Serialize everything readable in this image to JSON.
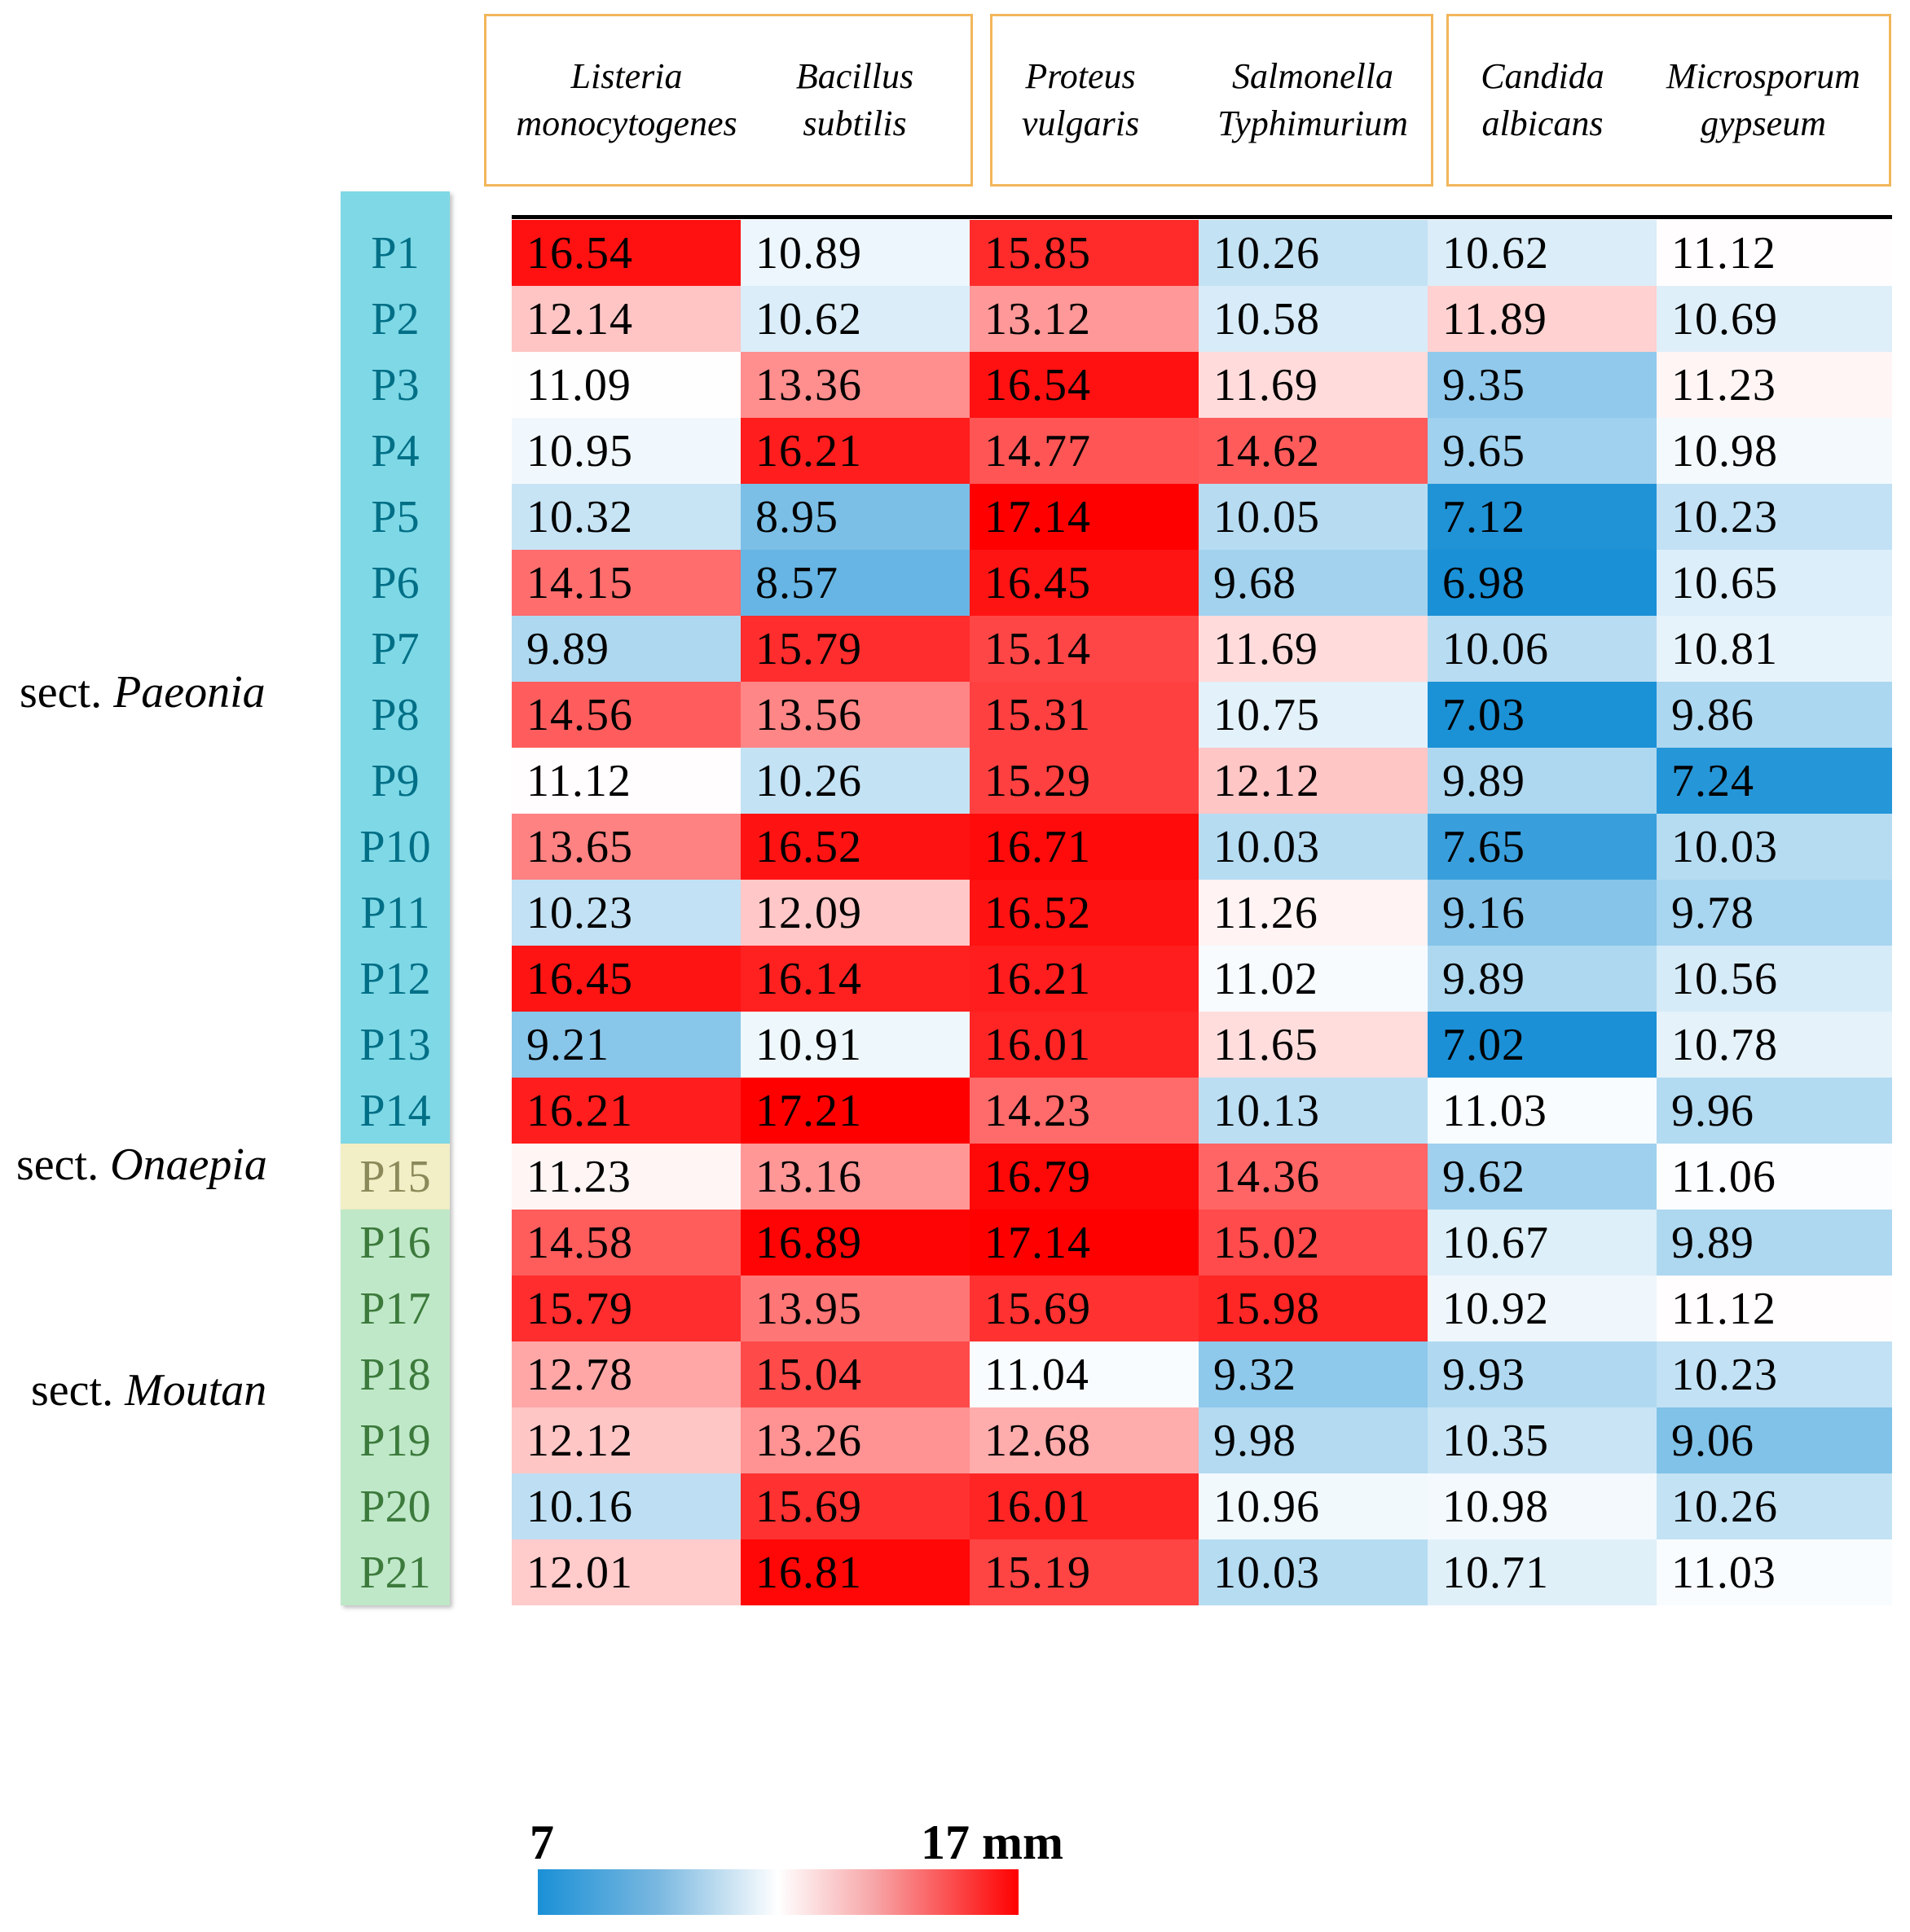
{
  "chart_data": {
    "type": "heatmap",
    "columns": [
      {
        "line1": "Listeria",
        "line2": "monocytogenes"
      },
      {
        "line1": "Bacillus",
        "line2": "subtilis"
      },
      {
        "line1": "Proteus",
        "line2": "vulgaris"
      },
      {
        "line1": "Salmonella",
        "line2": "Typhimurium"
      },
      {
        "line1": "Candida",
        "line2": "albicans"
      },
      {
        "line1": "Microsporum",
        "line2": "gypseum"
      }
    ],
    "column_groups": [
      [
        0,
        1
      ],
      [
        2,
        3
      ],
      [
        4,
        5
      ]
    ],
    "rows": [
      "P1",
      "P2",
      "P3",
      "P4",
      "P5",
      "P6",
      "P7",
      "P8",
      "P9",
      "P10",
      "P11",
      "P12",
      "P13",
      "P14",
      "P15",
      "P16",
      "P17",
      "P18",
      "P19",
      "P20",
      "P21"
    ],
    "values": [
      [
        16.54,
        10.89,
        15.85,
        10.26,
        10.62,
        11.12
      ],
      [
        12.14,
        10.62,
        13.12,
        10.58,
        11.89,
        10.69
      ],
      [
        11.09,
        13.36,
        16.54,
        11.69,
        9.35,
        11.23
      ],
      [
        10.95,
        16.21,
        14.77,
        14.62,
        9.65,
        10.98
      ],
      [
        10.32,
        8.95,
        17.14,
        10.05,
        7.12,
        10.23
      ],
      [
        14.15,
        8.57,
        16.45,
        9.68,
        6.98,
        10.65
      ],
      [
        9.89,
        15.79,
        15.14,
        11.69,
        10.06,
        10.81
      ],
      [
        14.56,
        13.56,
        15.31,
        10.75,
        7.03,
        9.86
      ],
      [
        11.12,
        10.26,
        15.29,
        12.12,
        9.89,
        7.24
      ],
      [
        13.65,
        16.52,
        16.71,
        10.03,
        7.65,
        10.03
      ],
      [
        10.23,
        12.09,
        16.52,
        11.26,
        9.16,
        9.78
      ],
      [
        16.45,
        16.14,
        16.21,
        11.02,
        9.89,
        10.56
      ],
      [
        9.21,
        10.91,
        16.01,
        11.65,
        7.02,
        10.78
      ],
      [
        16.21,
        17.21,
        14.23,
        10.13,
        11.03,
        9.96
      ],
      [
        11.23,
        13.16,
        16.79,
        14.36,
        9.62,
        11.06
      ],
      [
        14.58,
        16.89,
        17.14,
        15.02,
        10.67,
        9.89
      ],
      [
        15.79,
        13.95,
        15.69,
        15.98,
        10.92,
        11.12
      ],
      [
        12.78,
        15.04,
        11.04,
        9.32,
        9.93,
        10.23
      ],
      [
        12.12,
        13.26,
        12.68,
        9.98,
        10.35,
        9.06
      ],
      [
        10.16,
        15.69,
        16.01,
        10.96,
        10.98,
        10.26
      ],
      [
        12.01,
        16.81,
        15.19,
        10.03,
        10.71,
        11.03
      ]
    ],
    "sections": [
      {
        "prefix": "sect. ",
        "name": "Paeonia",
        "rows": [
          0,
          13
        ],
        "label_color": "#006f86",
        "fill": "#7fd8e6"
      },
      {
        "prefix": "sect. ",
        "name": "Onaepia",
        "rows": [
          14,
          14
        ],
        "label_color": "#8a8a5a",
        "fill": "#f2efc6"
      },
      {
        "prefix": "sect. ",
        "name": "Moutan",
        "rows": [
          15,
          20
        ],
        "label_color": "#3c7a3c",
        "fill": "#bfe8c8"
      }
    ],
    "colorbar": {
      "min": 7,
      "max": 17,
      "min_label": "7",
      "max_label": "17 mm",
      "low_color": "#1a90d6",
      "mid_color": "#ffffff",
      "high_color": "#ff0000"
    }
  }
}
